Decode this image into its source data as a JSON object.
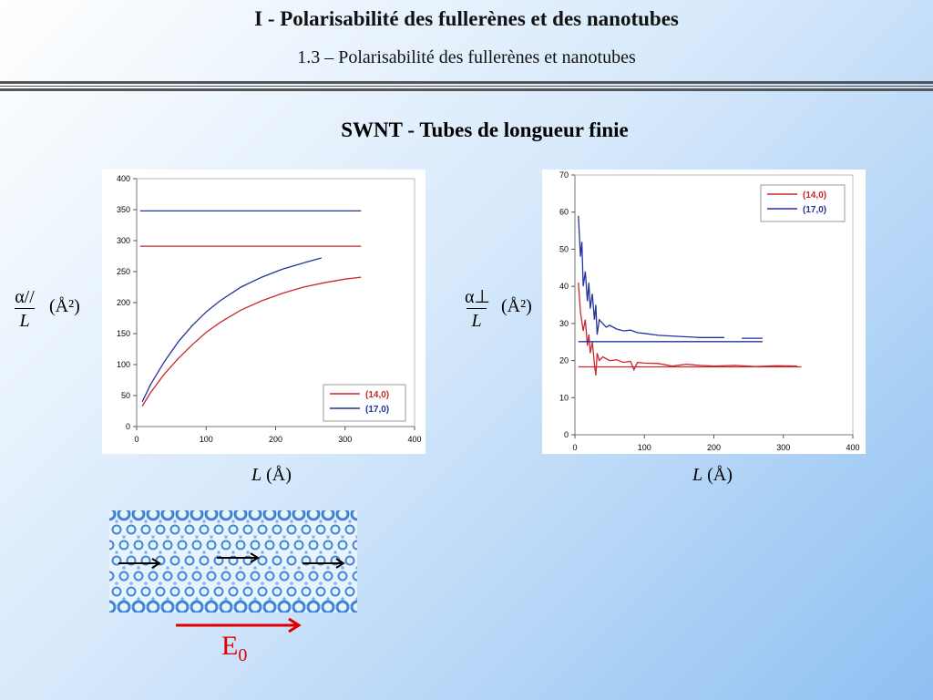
{
  "header": {
    "title": "I  - Polarisabilité des fullerènes et des nanotubes",
    "subtitle": "1.3 – Polarisabilité des fullerènes et nanotubes",
    "slide_heading": "SWNT - Tubes de longueur finie"
  },
  "left_label": {
    "numerator": "α//",
    "denominator": "L",
    "unit": "(Å²)"
  },
  "right_label": {
    "numerator": "α⊥",
    "denominator": "L",
    "unit": "(Å²)"
  },
  "xlabel": {
    "var": "L",
    "unit": " (Å)"
  },
  "field": {
    "label": "E",
    "sub": "0"
  },
  "chart_data": [
    {
      "type": "line",
      "ylabel": "α// / L (Å²)",
      "xlabel": "L (Å)",
      "xlim": [
        0,
        400
      ],
      "ylim": [
        0,
        400
      ],
      "xticks": [
        0,
        100,
        200,
        300,
        400
      ],
      "yticks": [
        0,
        50,
        100,
        150,
        200,
        250,
        300,
        350,
        400
      ],
      "legend": {
        "position": "bottom-right",
        "entries": [
          "(14,0)",
          "(17,0)"
        ]
      },
      "series": [
        {
          "name": "(14,0)",
          "color": "#c8282e",
          "x": [
            8,
            20,
            40,
            60,
            80,
            100,
            120,
            150,
            180,
            210,
            240,
            270,
            300,
            323
          ],
          "y": [
            33,
            55,
            85,
            110,
            132,
            152,
            168,
            188,
            203,
            215,
            225,
            232,
            238,
            241
          ]
        },
        {
          "name": "(17,0)",
          "color": "#23349b",
          "x": [
            8,
            20,
            40,
            60,
            80,
            100,
            120,
            150,
            180,
            210,
            240,
            266
          ],
          "y": [
            40,
            68,
            105,
            137,
            163,
            185,
            203,
            225,
            241,
            254,
            264,
            272
          ]
        },
        {
          "name": "",
          "color": "#c8282e",
          "x": [
            5,
            323
          ],
          "y": [
            291,
            291
          ]
        },
        {
          "name": "",
          "color": "#23349b",
          "x": [
            5,
            323
          ],
          "y": [
            348,
            348
          ]
        }
      ]
    },
    {
      "type": "line",
      "ylabel": "α⊥ / L (Å²)",
      "xlabel": "L (Å)",
      "xlim": [
        0,
        400
      ],
      "ylim": [
        0,
        70
      ],
      "xticks": [
        0,
        100,
        200,
        300,
        400
      ],
      "yticks": [
        0,
        10,
        20,
        30,
        40,
        50,
        60,
        70
      ],
      "legend": {
        "position": "top-right",
        "entries": [
          "(14,0)",
          "(17,0)"
        ]
      },
      "series": [
        {
          "name": "(14,0)",
          "color": "#c8282e",
          "x": [
            5,
            8,
            12,
            15,
            18,
            20,
            22,
            25,
            28,
            30,
            32,
            35,
            40,
            45,
            50,
            60,
            70,
            80,
            85,
            90,
            100,
            120,
            140,
            160,
            180,
            200,
            230,
            260,
            290,
            320
          ],
          "y": [
            41,
            33,
            28,
            31,
            24,
            27,
            22,
            25,
            19,
            16,
            22,
            20,
            21,
            20.5,
            20,
            20.2,
            19.5,
            19.8,
            17.5,
            19.5,
            19.3,
            19.2,
            18.5,
            19,
            18.7,
            18.5,
            18.7,
            18.4,
            18.6,
            18.5
          ]
        },
        {
          "name": "(17,0)",
          "color": "#23349b",
          "x": [
            5,
            8,
            10,
            12,
            15,
            18,
            20,
            22,
            25,
            28,
            30,
            32,
            35,
            40,
            45,
            50,
            60,
            70,
            80,
            90,
            100,
            120,
            150,
            180,
            215
          ],
          "y": [
            59,
            48,
            52,
            40,
            44,
            36,
            41,
            34,
            38,
            31,
            35,
            27,
            31,
            30,
            29,
            29.5,
            28.5,
            28,
            28.2,
            27.5,
            27.3,
            26.8,
            26.5,
            26.2,
            26.2
          ]
        },
        {
          "name": "",
          "color": "#23349b",
          "x": [
            240,
            270
          ],
          "y": [
            26,
            26
          ]
        },
        {
          "name": "",
          "color": "#c8282e",
          "x": [
            5,
            326
          ],
          "y": [
            18.3,
            18.3
          ]
        },
        {
          "name": "",
          "color": "#23349b",
          "x": [
            5,
            270
          ],
          "y": [
            25.1,
            25.1
          ]
        }
      ]
    }
  ]
}
